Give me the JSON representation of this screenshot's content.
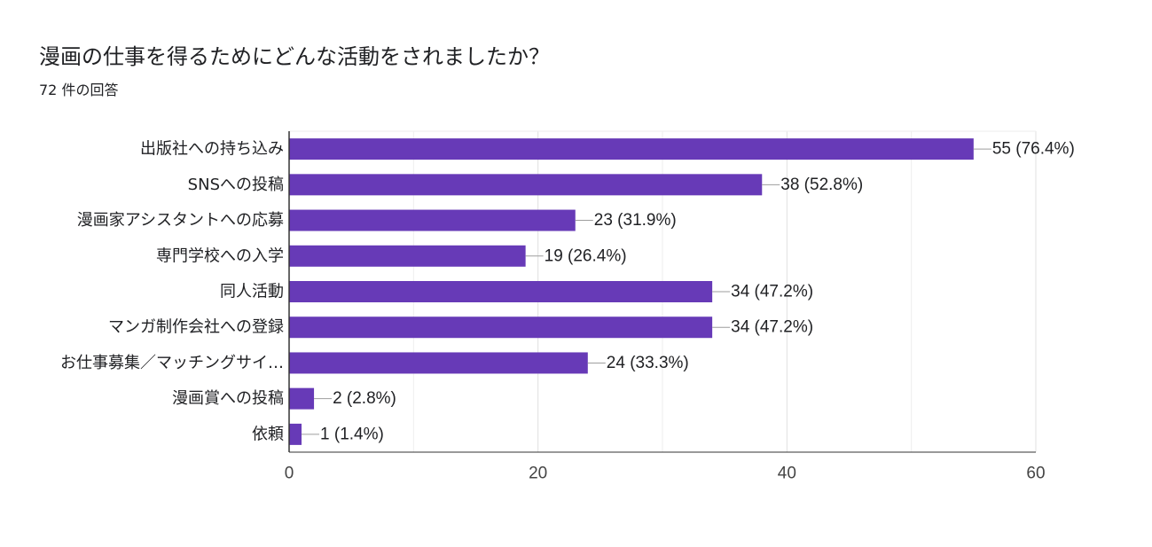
{
  "chart_data": {
    "type": "bar",
    "orientation": "horizontal",
    "title": "漫画の仕事を得るためにどんな活動をされましたか？",
    "subtitle": "72 件の回答",
    "categories": [
      "出版社への持ち込み",
      "SNSへの投稿",
      "漫画家アシスタントへの応募",
      "専門学校への入学",
      "同人活動",
      "マンガ制作会社への登録",
      "お仕事募集／マッチングサイ…",
      "漫画賞への投稿",
      "依頼"
    ],
    "values": [
      55,
      38,
      23,
      19,
      34,
      34,
      24,
      2,
      1
    ],
    "value_labels": [
      "55 (76.4%)",
      "38 (52.8%)",
      "23 (31.9%)",
      "19 (26.4%)",
      "34 (47.2%)",
      "34 (47.2%)",
      "24 (33.3%)",
      "2 (2.8%)",
      "1 (1.4%)"
    ],
    "xlim": [
      0,
      60
    ],
    "x_ticks": [
      0,
      20,
      40,
      60
    ],
    "x_ticks_labels": [
      "0",
      "20",
      "40",
      "60"
    ],
    "xlabel": "",
    "ylabel": "",
    "grid": true,
    "bar_color": "#673ab7"
  }
}
